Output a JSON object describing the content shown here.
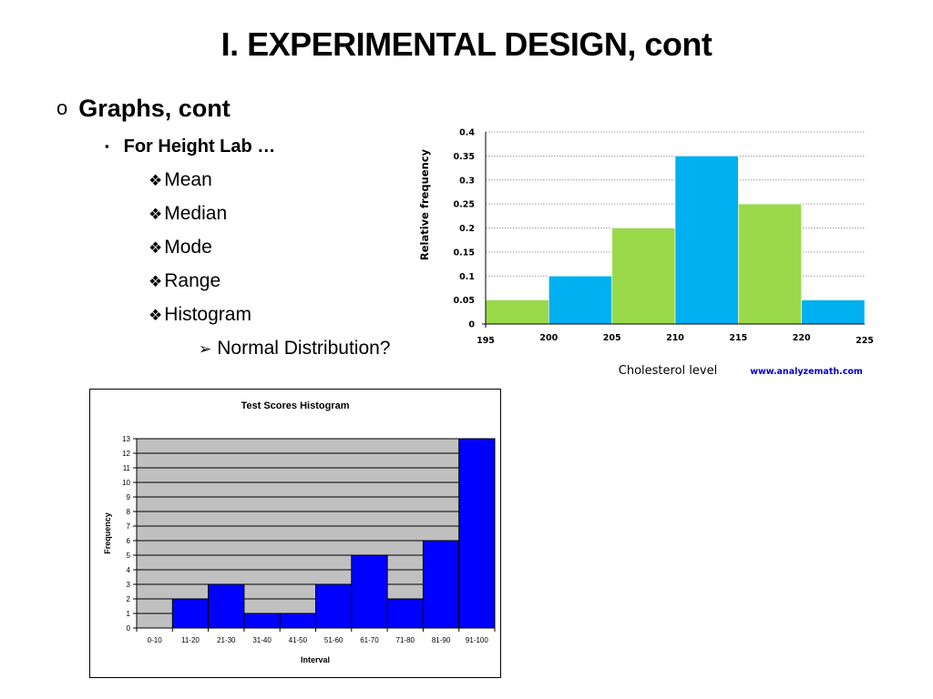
{
  "slide": {
    "title": "I.  EXPERIMENTAL DESIGN, cont",
    "level1": {
      "marker": "o",
      "text": "Graphs, cont"
    },
    "level2": {
      "marker": "▪",
      "text": "For Height Lab …"
    },
    "level3": {
      "marker": "❖",
      "items": [
        "Mean",
        "Median",
        "Mode",
        "Range",
        "Histogram"
      ]
    },
    "level4": {
      "marker": "➢",
      "text": "Normal Distribution?"
    }
  },
  "chart_data": [
    {
      "type": "bar",
      "histogram": true,
      "title": "",
      "xlabel": "Cholesterol level",
      "ylabel": "Relative frequency",
      "source": "www.analyzemath.com",
      "bin_edges": [
        195,
        200,
        205,
        210,
        215,
        220,
        225
      ],
      "x_ticks": [
        "195",
        "200",
        "205",
        "210",
        "215",
        "220",
        "225"
      ],
      "values": [
        0.05,
        0.1,
        0.2,
        0.35,
        0.25,
        0.05
      ],
      "bar_colors": [
        "#99d94a",
        "#00b0f0",
        "#99d94a",
        "#00b0f0",
        "#99d94a",
        "#00b0f0"
      ],
      "y_ticks": [
        "0",
        "0.05",
        "0.1",
        "0.15",
        "0.2",
        "0.25",
        "0.3",
        "0.35",
        "0.4"
      ],
      "ylim": [
        0,
        0.4
      ],
      "grid": true,
      "source_color": "#0000cc"
    },
    {
      "type": "bar",
      "histogram": true,
      "title": "Test Scores Histogram",
      "xlabel": "Interval",
      "ylabel": "Frequency",
      "categories": [
        "0-10",
        "11-20",
        "21-30",
        "31-40",
        "41-50",
        "51-60",
        "61-70",
        "71-80",
        "81-90",
        "91-100"
      ],
      "values": [
        0,
        2,
        3,
        1,
        1,
        3,
        5,
        2,
        6,
        13
      ],
      "y_ticks": [
        "0",
        "1",
        "2",
        "3",
        "4",
        "5",
        "6",
        "7",
        "8",
        "9",
        "10",
        "11",
        "12",
        "13"
      ],
      "ylim": [
        0,
        13
      ],
      "grid": true,
      "bar_color": "#0000ff",
      "plot_background": "#c0c0c0"
    }
  ]
}
